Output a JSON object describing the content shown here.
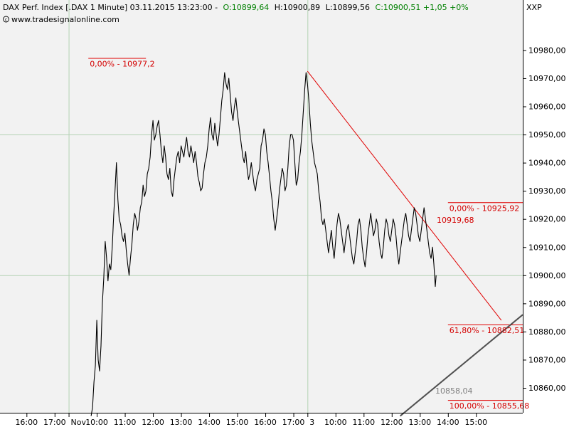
{
  "header": {
    "title": "DAX Perf. Index [.DAX  1 Minute] 03.11.2015 13:23:00 -",
    "open": "O:10899,64",
    "high": "H:10900,89",
    "low": "L:10899,56",
    "close_change": "C:10900,51 +1,05 +0%",
    "source": "www.tradesignalonline.com",
    "colors": {
      "open": "#008000",
      "high": "#000000",
      "low": "#000000",
      "close": "#008000"
    }
  },
  "axis": {
    "exchange_label": "XXP"
  },
  "colors": {
    "background": "#f2f2f2",
    "price": "#000000",
    "trendline": "#e00000",
    "support_line": "#505050",
    "fib_text": "#d40000",
    "grid": "#b4d2b4"
  },
  "chart_data": {
    "type": "line",
    "ylim": [
      10850,
      10987
    ],
    "y_ticks": [
      10860,
      10870,
      10880,
      10890,
      10900,
      10910,
      10920,
      10930,
      10940,
      10950,
      10960,
      10970,
      10980
    ],
    "y_tick_labels": [
      "10860,00",
      "10870,00",
      "10880,00",
      "10890,00",
      "10900,00",
      "10910,00",
      "10920,00",
      "10930,00",
      "10940,00",
      "10950,00",
      "10960,00",
      "10970,00",
      "10980,00"
    ],
    "x_ticks": [
      {
        "label": "16:00",
        "t": 0
      },
      {
        "label": "17:00",
        "t": 1
      },
      {
        "label": "Nov",
        "t": 1.5
      },
      {
        "label": "10:00",
        "t": 2.5
      },
      {
        "label": "11:00",
        "t": 3.5
      },
      {
        "label": "12:00",
        "t": 4.5
      },
      {
        "label": "13:00",
        "t": 5.5
      },
      {
        "label": "14:00",
        "t": 6.5
      },
      {
        "label": "15:00",
        "t": 7.5
      },
      {
        "label": "16:00",
        "t": 8.5
      },
      {
        "label": "17:00",
        "t": 9.5
      },
      {
        "label": "3",
        "t": 10
      },
      {
        "label": "10:00",
        "t": 11
      },
      {
        "label": "11:00",
        "t": 12
      },
      {
        "label": "12:00",
        "t": 13
      },
      {
        "label": "13:00",
        "t": 14
      },
      {
        "label": "14:00",
        "t": 15
      },
      {
        "label": "15:00",
        "t": 16
      }
    ],
    "x_range": [
      -0.3,
      17.8
    ],
    "gridlines": {
      "y": [
        10900,
        10950
      ],
      "t": [
        1.5,
        10
      ]
    },
    "series": [
      {
        "points": [
          [
            2.3,
            10850
          ],
          [
            2.35,
            10853
          ],
          [
            2.4,
            10862
          ],
          [
            2.45,
            10868
          ],
          [
            2.5,
            10884
          ],
          [
            2.55,
            10870
          ],
          [
            2.6,
            10866
          ],
          [
            2.65,
            10875
          ],
          [
            2.7,
            10890
          ],
          [
            2.75,
            10899
          ],
          [
            2.8,
            10912
          ],
          [
            2.85,
            10906
          ],
          [
            2.9,
            10898
          ],
          [
            2.95,
            10904
          ],
          [
            3.0,
            10902
          ],
          [
            3.05,
            10910
          ],
          [
            3.1,
            10921
          ],
          [
            3.15,
            10930
          ],
          [
            3.2,
            10940
          ],
          [
            3.25,
            10927
          ],
          [
            3.3,
            10920
          ],
          [
            3.35,
            10918
          ],
          [
            3.4,
            10914
          ],
          [
            3.45,
            10912
          ],
          [
            3.5,
            10915
          ],
          [
            3.55,
            10909
          ],
          [
            3.6,
            10904
          ],
          [
            3.65,
            10900
          ],
          [
            3.7,
            10906
          ],
          [
            3.75,
            10911
          ],
          [
            3.8,
            10918
          ],
          [
            3.85,
            10922
          ],
          [
            3.9,
            10920
          ],
          [
            3.95,
            10916
          ],
          [
            4.0,
            10919
          ],
          [
            4.05,
            10924
          ],
          [
            4.1,
            10926
          ],
          [
            4.15,
            10932
          ],
          [
            4.2,
            10928
          ],
          [
            4.25,
            10930
          ],
          [
            4.3,
            10936
          ],
          [
            4.35,
            10938
          ],
          [
            4.4,
            10942
          ],
          [
            4.45,
            10950
          ],
          [
            4.5,
            10955
          ],
          [
            4.55,
            10948
          ],
          [
            4.6,
            10950
          ],
          [
            4.65,
            10953
          ],
          [
            4.7,
            10955
          ],
          [
            4.75,
            10950
          ],
          [
            4.8,
            10944
          ],
          [
            4.85,
            10940
          ],
          [
            4.9,
            10946
          ],
          [
            4.95,
            10942
          ],
          [
            5.0,
            10936
          ],
          [
            5.05,
            10934
          ],
          [
            5.1,
            10938
          ],
          [
            5.15,
            10930
          ],
          [
            5.2,
            10928
          ],
          [
            5.25,
            10934
          ],
          [
            5.3,
            10938
          ],
          [
            5.35,
            10942
          ],
          [
            5.4,
            10944
          ],
          [
            5.45,
            10940
          ],
          [
            5.5,
            10946
          ],
          [
            5.55,
            10944
          ],
          [
            5.6,
            10942
          ],
          [
            5.65,
            10946
          ],
          [
            5.7,
            10949
          ],
          [
            5.75,
            10944
          ],
          [
            5.8,
            10942
          ],
          [
            5.85,
            10946
          ],
          [
            5.9,
            10943
          ],
          [
            5.95,
            10940
          ],
          [
            6.0,
            10944
          ],
          [
            6.05,
            10940
          ],
          [
            6.1,
            10935
          ],
          [
            6.15,
            10933
          ],
          [
            6.2,
            10930
          ],
          [
            6.25,
            10931
          ],
          [
            6.3,
            10936
          ],
          [
            6.35,
            10940
          ],
          [
            6.4,
            10942
          ],
          [
            6.45,
            10946
          ],
          [
            6.5,
            10952
          ],
          [
            6.55,
            10956
          ],
          [
            6.6,
            10950
          ],
          [
            6.65,
            10948
          ],
          [
            6.7,
            10954
          ],
          [
            6.75,
            10950
          ],
          [
            6.8,
            10946
          ],
          [
            6.85,
            10950
          ],
          [
            6.9,
            10956
          ],
          [
            6.95,
            10962
          ],
          [
            7.0,
            10966
          ],
          [
            7.05,
            10972
          ],
          [
            7.1,
            10968
          ],
          [
            7.15,
            10966
          ],
          [
            7.2,
            10970
          ],
          [
            7.25,
            10964
          ],
          [
            7.3,
            10958
          ],
          [
            7.35,
            10955
          ],
          [
            7.4,
            10960
          ],
          [
            7.45,
            10963
          ],
          [
            7.5,
            10958
          ],
          [
            7.55,
            10954
          ],
          [
            7.6,
            10950
          ],
          [
            7.65,
            10946
          ],
          [
            7.7,
            10942
          ],
          [
            7.75,
            10940
          ],
          [
            7.8,
            10944
          ],
          [
            7.85,
            10938
          ],
          [
            7.9,
            10934
          ],
          [
            7.95,
            10936
          ],
          [
            8.0,
            10940
          ],
          [
            8.05,
            10936
          ],
          [
            8.1,
            10932
          ],
          [
            8.15,
            10930
          ],
          [
            8.2,
            10934
          ],
          [
            8.25,
            10936
          ],
          [
            8.3,
            10938
          ],
          [
            8.35,
            10946
          ],
          [
            8.4,
            10948
          ],
          [
            8.45,
            10952
          ],
          [
            8.5,
            10950
          ],
          [
            8.55,
            10944
          ],
          [
            8.6,
            10940
          ],
          [
            8.65,
            10935
          ],
          [
            8.7,
            10930
          ],
          [
            8.75,
            10926
          ],
          [
            8.8,
            10920
          ],
          [
            8.85,
            10916
          ],
          [
            8.9,
            10920
          ],
          [
            8.95,
            10924
          ],
          [
            9.0,
            10930
          ],
          [
            9.05,
            10934
          ],
          [
            9.1,
            10938
          ],
          [
            9.15,
            10936
          ],
          [
            9.2,
            10930
          ],
          [
            9.25,
            10932
          ],
          [
            9.3,
            10938
          ],
          [
            9.35,
            10946
          ],
          [
            9.4,
            10950
          ],
          [
            9.45,
            10950
          ],
          [
            9.5,
            10948
          ],
          [
            9.55,
            10940
          ],
          [
            9.6,
            10932
          ],
          [
            9.65,
            10934
          ],
          [
            9.7,
            10940
          ],
          [
            9.75,
            10944
          ],
          [
            9.8,
            10950
          ],
          [
            9.85,
            10958
          ],
          [
            9.9,
            10966
          ],
          [
            9.95,
            10972
          ],
          [
            10.0,
            10968
          ],
          [
            10.05,
            10962
          ],
          [
            10.1,
            10954
          ],
          [
            10.15,
            10948
          ],
          [
            10.2,
            10944
          ],
          [
            10.25,
            10940
          ],
          [
            10.3,
            10938
          ],
          [
            10.35,
            10936
          ],
          [
            10.4,
            10930
          ],
          [
            10.45,
            10926
          ],
          [
            10.5,
            10920
          ],
          [
            10.55,
            10918
          ],
          [
            10.6,
            10920
          ],
          [
            10.65,
            10916
          ],
          [
            10.7,
            10912
          ],
          [
            10.75,
            10908
          ],
          [
            10.8,
            10912
          ],
          [
            10.85,
            10916
          ],
          [
            10.9,
            10910
          ],
          [
            10.95,
            10906
          ],
          [
            11.0,
            10912
          ],
          [
            11.05,
            10918
          ],
          [
            11.1,
            10922
          ],
          [
            11.15,
            10920
          ],
          [
            11.2,
            10916
          ],
          [
            11.25,
            10912
          ],
          [
            11.3,
            10908
          ],
          [
            11.35,
            10912
          ],
          [
            11.4,
            10916
          ],
          [
            11.45,
            10918
          ],
          [
            11.5,
            10914
          ],
          [
            11.55,
            10910
          ],
          [
            11.6,
            10906
          ],
          [
            11.65,
            10904
          ],
          [
            11.7,
            10908
          ],
          [
            11.75,
            10912
          ],
          [
            11.8,
            10918
          ],
          [
            11.85,
            10920
          ],
          [
            11.9,
            10916
          ],
          [
            11.95,
            10910
          ],
          [
            12.0,
            10906
          ],
          [
            12.05,
            10903
          ],
          [
            12.1,
            10908
          ],
          [
            12.15,
            10914
          ],
          [
            12.2,
            10918
          ],
          [
            12.25,
            10922
          ],
          [
            12.3,
            10918
          ],
          [
            12.35,
            10914
          ],
          [
            12.4,
            10916
          ],
          [
            12.45,
            10920
          ],
          [
            12.5,
            10918
          ],
          [
            12.55,
            10912
          ],
          [
            12.6,
            10908
          ],
          [
            12.65,
            10906
          ],
          [
            12.7,
            10910
          ],
          [
            12.75,
            10916
          ],
          [
            12.8,
            10920
          ],
          [
            12.85,
            10918
          ],
          [
            12.9,
            10914
          ],
          [
            12.95,
            10912
          ],
          [
            13.0,
            10916
          ],
          [
            13.05,
            10920
          ],
          [
            13.1,
            10918
          ],
          [
            13.15,
            10914
          ],
          [
            13.2,
            10908
          ],
          [
            13.25,
            10904
          ],
          [
            13.3,
            10908
          ],
          [
            13.35,
            10912
          ],
          [
            13.4,
            10916
          ],
          [
            13.45,
            10920
          ],
          [
            13.5,
            10922
          ],
          [
            13.55,
            10918
          ],
          [
            13.6,
            10914
          ],
          [
            13.65,
            10912
          ],
          [
            13.7,
            10916
          ],
          [
            13.75,
            10920
          ],
          [
            13.8,
            10924
          ],
          [
            13.85,
            10922
          ],
          [
            13.9,
            10918
          ],
          [
            13.95,
            10914
          ],
          [
            14.0,
            10912
          ],
          [
            14.05,
            10916
          ],
          [
            14.1,
            10920
          ],
          [
            14.15,
            10924
          ],
          [
            14.2,
            10920
          ],
          [
            14.25,
            10916
          ],
          [
            14.3,
            10912
          ],
          [
            14.35,
            10908
          ],
          [
            14.4,
            10906
          ],
          [
            14.45,
            10910
          ],
          [
            14.5,
            10904
          ],
          [
            14.55,
            10896
          ],
          [
            14.58,
            10900
          ]
        ]
      }
    ],
    "annotations": [
      {
        "kind": "fib_level",
        "label": "0,00% - 10977,2",
        "y": 10977.2,
        "t0": 2.2,
        "t1": 4.25
      },
      {
        "kind": "fib_level",
        "label": "0,00% - 10925,92",
        "y": 10925.92,
        "t0": 15.0,
        "t1": 17.8
      },
      {
        "kind": "fib_level",
        "label": "61,80% - 10882,51",
        "y": 10882.51,
        "t0": 15.0,
        "t1": 17.8
      },
      {
        "kind": "fib_level",
        "label": "100,00% - 10855,68",
        "y": 10855.68,
        "t0": 15.0,
        "t1": 17.8
      },
      {
        "kind": "price_label",
        "label": "10919,68",
        "y": 10919.68,
        "t": 14.6
      },
      {
        "kind": "price_label",
        "label": "10858,04",
        "y": 10858.04,
        "t": 14.55
      },
      {
        "kind": "trendline",
        "from": [
          10.0,
          10972.5
        ],
        "to": [
          16.9,
          10884
        ]
      },
      {
        "kind": "support_line",
        "from": [
          13.3,
          10850
        ],
        "to": [
          17.8,
          10886
        ]
      }
    ]
  }
}
